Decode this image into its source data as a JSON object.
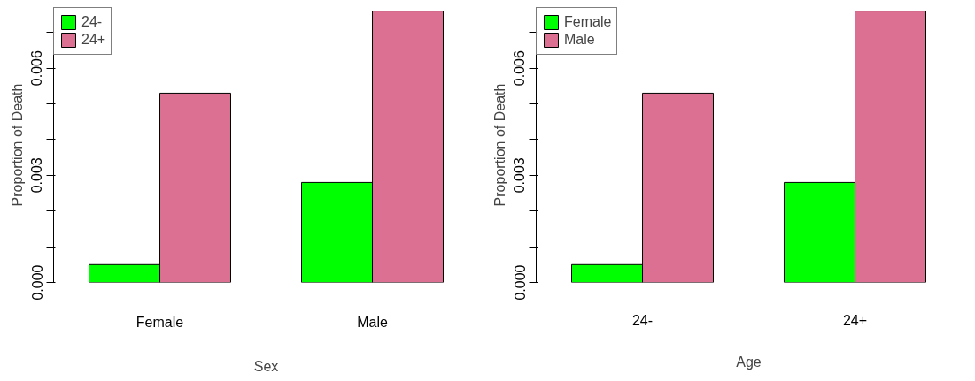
{
  "chart_data": [
    {
      "type": "bar",
      "xlabel": "Sex",
      "ylabel": "Proportion of Death",
      "categories": [
        "Female",
        "Male"
      ],
      "legend": "top left",
      "grid": false,
      "ylim": [
        0,
        0.0077
      ],
      "yticks": [
        {
          "value": 0,
          "label": "0.000"
        },
        {
          "value": 0.001,
          "label": null
        },
        {
          "value": 0.002,
          "label": null
        },
        {
          "value": 0.003,
          "label": "0.003"
        },
        {
          "value": 0.004,
          "label": null
        },
        {
          "value": 0.005,
          "label": null
        },
        {
          "value": 0.006,
          "label": "0.006"
        },
        {
          "value": 0.007,
          "label": null
        }
      ],
      "series": [
        {
          "name": "24-",
          "color": "#00ff00",
          "values": [
            0.0005,
            0.0028
          ]
        },
        {
          "name": "24+",
          "color": "#db7093",
          "values": [
            0.0053,
            0.0076
          ]
        }
      ]
    },
    {
      "type": "bar",
      "xlabel": "Age",
      "ylabel": "Proportion of Death",
      "categories": [
        "24-",
        "24+"
      ],
      "legend": "top left",
      "grid": false,
      "ylim": [
        0,
        0.0077
      ],
      "yticks": [
        {
          "value": 0,
          "label": "0.000"
        },
        {
          "value": 0.001,
          "label": null
        },
        {
          "value": 0.002,
          "label": null
        },
        {
          "value": 0.003,
          "label": "0.003"
        },
        {
          "value": 0.004,
          "label": null
        },
        {
          "value": 0.005,
          "label": null
        },
        {
          "value": 0.006,
          "label": "0.006"
        },
        {
          "value": 0.007,
          "label": null
        }
      ],
      "series": [
        {
          "name": "Female",
          "color": "#00ff00",
          "values": [
            0.0005,
            0.0028
          ]
        },
        {
          "name": "Male",
          "color": "#db7093",
          "values": [
            0.0053,
            0.0076
          ]
        }
      ]
    }
  ]
}
